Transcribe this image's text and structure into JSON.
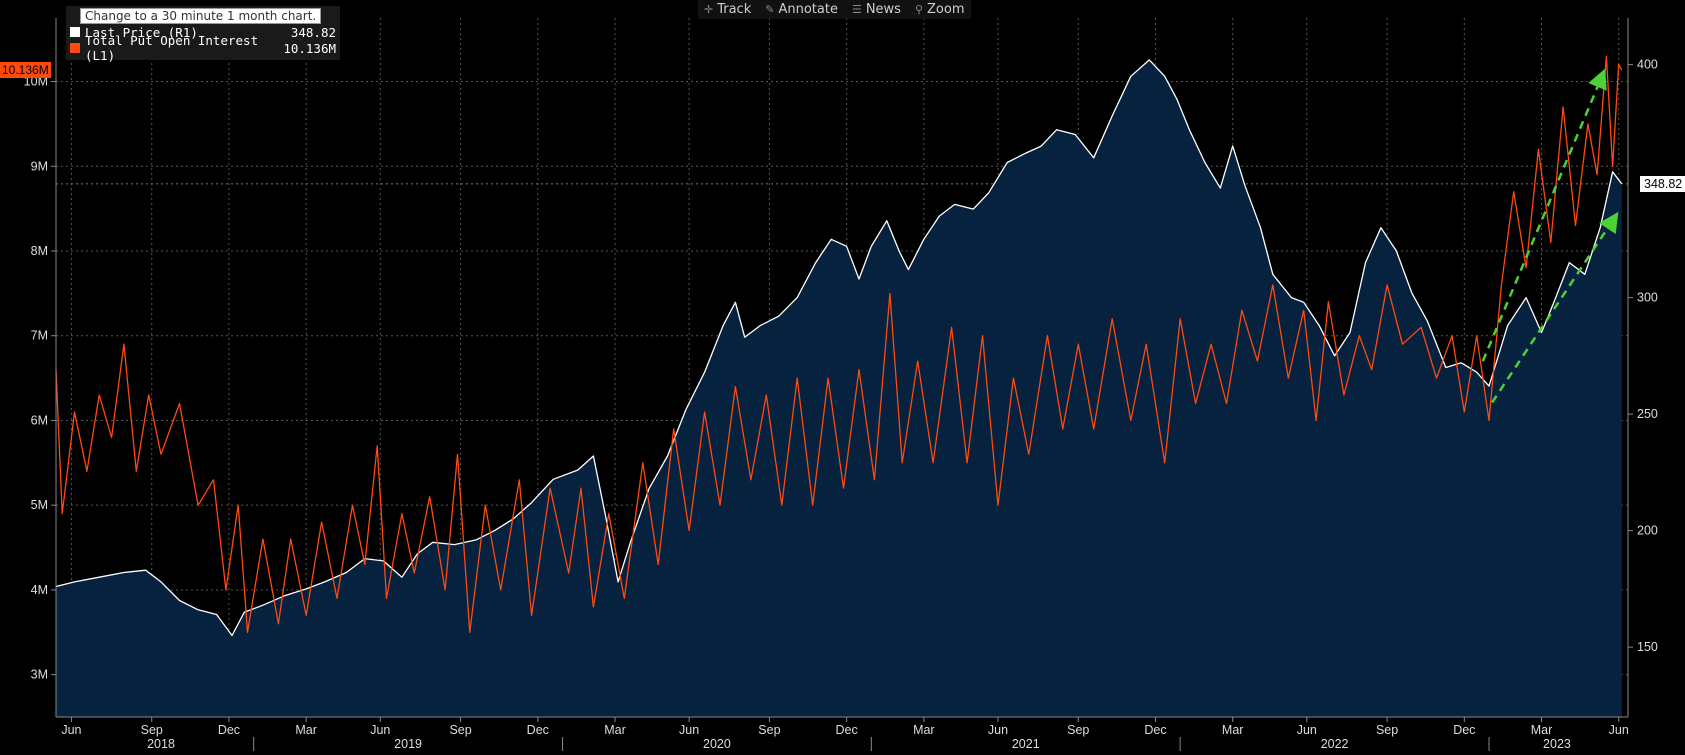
{
  "toolbar": {
    "track": "Track",
    "annotate": "Annotate",
    "news": "News",
    "zoom": "Zoom"
  },
  "legend": {
    "tooltip": "Change to a 30 minute 1 month chart.",
    "series": [
      {
        "label": "Last Price  (R1)",
        "value": "348.82",
        "color": "#ffffff"
      },
      {
        "label": "Total Put Open Interest  (L1)",
        "value": "10.136M",
        "color": "#ff4a0f"
      }
    ]
  },
  "flags": {
    "left": "10.136M",
    "right": "348.82"
  },
  "chart_data": {
    "type": "line",
    "left_axis": {
      "ticks": [
        "3M",
        "4M",
        "5M",
        "6M",
        "7M",
        "8M",
        "9M",
        "10M"
      ],
      "values": [
        3,
        4,
        5,
        6,
        7,
        8,
        9,
        10
      ],
      "range": [
        2.5,
        10.75
      ],
      "unit": "M"
    },
    "right_axis": {
      "ticks": [
        "150",
        "200",
        "250",
        "300",
        "400"
      ],
      "values": [
        150,
        200,
        250,
        300,
        400
      ],
      "range": [
        120,
        420
      ]
    },
    "x_axis": {
      "ticks": [
        {
          "label": "Jun",
          "t": 2018.41
        },
        {
          "label": "Sep",
          "t": 2018.67
        },
        {
          "label": "Dec",
          "t": 2018.92
        },
        {
          "label": "Mar",
          "t": 2019.17
        },
        {
          "label": "Jun",
          "t": 2019.41
        },
        {
          "label": "Sep",
          "t": 2019.67
        },
        {
          "label": "Dec",
          "t": 2019.92
        },
        {
          "label": "Mar",
          "t": 2020.17
        },
        {
          "label": "Jun",
          "t": 2020.41
        },
        {
          "label": "Sep",
          "t": 2020.67
        },
        {
          "label": "Dec",
          "t": 2020.92
        },
        {
          "label": "Mar",
          "t": 2021.17
        },
        {
          "label": "Jun",
          "t": 2021.41
        },
        {
          "label": "Sep",
          "t": 2021.67
        },
        {
          "label": "Dec",
          "t": 2021.92
        },
        {
          "label": "Mar",
          "t": 2022.17
        },
        {
          "label": "Jun",
          "t": 2022.41
        },
        {
          "label": "Sep",
          "t": 2022.67
        },
        {
          "label": "Dec",
          "t": 2022.92
        },
        {
          "label": "Mar",
          "t": 2023.17
        },
        {
          "label": "Jun",
          "t": 2023.42
        }
      ],
      "years": [
        {
          "label": "2018",
          "t": 2018.7
        },
        {
          "label": "2019",
          "t": 2019.5
        },
        {
          "label": "2020",
          "t": 2020.5
        },
        {
          "label": "2021",
          "t": 2021.5
        },
        {
          "label": "2022",
          "t": 2022.5
        },
        {
          "label": "2023",
          "t": 2023.22
        }
      ],
      "year_separators": [
        2019.0,
        2020.0,
        2021.0,
        2022.0,
        2023.0
      ],
      "range": [
        2018.36,
        2023.45
      ]
    },
    "grid": true,
    "series": [
      {
        "name": "Last Price",
        "axis": "right",
        "color": "#ffffff",
        "area_fill": "#06223f",
        "points": [
          [
            2018.36,
            176
          ],
          [
            2018.42,
            178
          ],
          [
            2018.5,
            180
          ],
          [
            2018.58,
            182
          ],
          [
            2018.65,
            183
          ],
          [
            2018.7,
            178
          ],
          [
            2018.76,
            170
          ],
          [
            2018.82,
            166
          ],
          [
            2018.88,
            164
          ],
          [
            2018.93,
            155
          ],
          [
            2018.97,
            165
          ],
          [
            2019.03,
            168
          ],
          [
            2019.1,
            172
          ],
          [
            2019.17,
            175
          ],
          [
            2019.23,
            178
          ],
          [
            2019.3,
            182
          ],
          [
            2019.36,
            188
          ],
          [
            2019.42,
            187
          ],
          [
            2019.48,
            180
          ],
          [
            2019.53,
            190
          ],
          [
            2019.58,
            195
          ],
          [
            2019.65,
            194
          ],
          [
            2019.72,
            196
          ],
          [
            2019.78,
            200
          ],
          [
            2019.84,
            205
          ],
          [
            2019.9,
            212
          ],
          [
            2019.97,
            222
          ],
          [
            2020.05,
            226
          ],
          [
            2020.1,
            232
          ],
          [
            2020.14,
            206
          ],
          [
            2020.18,
            178
          ],
          [
            2020.22,
            195
          ],
          [
            2020.28,
            218
          ],
          [
            2020.34,
            232
          ],
          [
            2020.4,
            252
          ],
          [
            2020.46,
            268
          ],
          [
            2020.52,
            288
          ],
          [
            2020.56,
            298
          ],
          [
            2020.59,
            283
          ],
          [
            2020.64,
            288
          ],
          [
            2020.7,
            292
          ],
          [
            2020.76,
            300
          ],
          [
            2020.82,
            315
          ],
          [
            2020.87,
            325
          ],
          [
            2020.92,
            322
          ],
          [
            2020.96,
            308
          ],
          [
            2021.0,
            322
          ],
          [
            2021.05,
            333
          ],
          [
            2021.09,
            320
          ],
          [
            2021.12,
            312
          ],
          [
            2021.17,
            325
          ],
          [
            2021.22,
            335
          ],
          [
            2021.27,
            340
          ],
          [
            2021.33,
            338
          ],
          [
            2021.38,
            345
          ],
          [
            2021.44,
            358
          ],
          [
            2021.5,
            362
          ],
          [
            2021.55,
            365
          ],
          [
            2021.6,
            372
          ],
          [
            2021.66,
            370
          ],
          [
            2021.72,
            360
          ],
          [
            2021.78,
            378
          ],
          [
            2021.84,
            395
          ],
          [
            2021.9,
            402
          ],
          [
            2021.95,
            395
          ],
          [
            2021.99,
            385
          ],
          [
            2022.03,
            372
          ],
          [
            2022.08,
            358
          ],
          [
            2022.13,
            347
          ],
          [
            2022.17,
            365
          ],
          [
            2022.21,
            348
          ],
          [
            2022.26,
            330
          ],
          [
            2022.3,
            310
          ],
          [
            2022.36,
            300
          ],
          [
            2022.4,
            298
          ],
          [
            2022.45,
            288
          ],
          [
            2022.5,
            275
          ],
          [
            2022.55,
            285
          ],
          [
            2022.6,
            315
          ],
          [
            2022.65,
            330
          ],
          [
            2022.7,
            320
          ],
          [
            2022.75,
            302
          ],
          [
            2022.8,
            290
          ],
          [
            2022.86,
            270
          ],
          [
            2022.91,
            272
          ],
          [
            2022.96,
            268
          ],
          [
            2023.0,
            262
          ],
          [
            2023.06,
            288
          ],
          [
            2023.12,
            300
          ],
          [
            2023.17,
            285
          ],
          [
            2023.21,
            298
          ],
          [
            2023.26,
            315
          ],
          [
            2023.31,
            310
          ],
          [
            2023.36,
            330
          ],
          [
            2023.4,
            354
          ],
          [
            2023.43,
            348.82
          ]
        ]
      },
      {
        "name": "Total Put Open Interest",
        "axis": "left",
        "color": "#ff4a0f",
        "points": [
          [
            2018.36,
            6.6
          ],
          [
            2018.38,
            4.9
          ],
          [
            2018.42,
            6.1
          ],
          [
            2018.46,
            5.4
          ],
          [
            2018.5,
            6.3
          ],
          [
            2018.54,
            5.8
          ],
          [
            2018.58,
            6.9
          ],
          [
            2018.62,
            5.4
          ],
          [
            2018.66,
            6.3
          ],
          [
            2018.7,
            5.6
          ],
          [
            2018.76,
            6.2
          ],
          [
            2018.82,
            5.0
          ],
          [
            2018.87,
            5.3
          ],
          [
            2018.91,
            4.0
          ],
          [
            2018.95,
            5.0
          ],
          [
            2018.98,
            3.5
          ],
          [
            2019.03,
            4.6
          ],
          [
            2019.08,
            3.6
          ],
          [
            2019.12,
            4.6
          ],
          [
            2019.17,
            3.7
          ],
          [
            2019.22,
            4.8
          ],
          [
            2019.27,
            3.9
          ],
          [
            2019.32,
            5.0
          ],
          [
            2019.36,
            4.3
          ],
          [
            2019.4,
            5.7
          ],
          [
            2019.43,
            3.9
          ],
          [
            2019.48,
            4.9
          ],
          [
            2019.52,
            4.2
          ],
          [
            2019.57,
            5.1
          ],
          [
            2019.62,
            4.0
          ],
          [
            2019.66,
            5.6
          ],
          [
            2019.7,
            3.5
          ],
          [
            2019.75,
            5.0
          ],
          [
            2019.8,
            4.0
          ],
          [
            2019.86,
            5.3
          ],
          [
            2019.9,
            3.7
          ],
          [
            2019.96,
            5.2
          ],
          [
            2020.02,
            4.2
          ],
          [
            2020.06,
            5.2
          ],
          [
            2020.1,
            3.8
          ],
          [
            2020.15,
            4.9
          ],
          [
            2020.2,
            3.9
          ],
          [
            2020.26,
            5.5
          ],
          [
            2020.31,
            4.3
          ],
          [
            2020.36,
            5.9
          ],
          [
            2020.41,
            4.7
          ],
          [
            2020.46,
            6.1
          ],
          [
            2020.51,
            5.0
          ],
          [
            2020.56,
            6.4
          ],
          [
            2020.61,
            5.3
          ],
          [
            2020.66,
            6.3
          ],
          [
            2020.71,
            5.0
          ],
          [
            2020.76,
            6.5
          ],
          [
            2020.81,
            5.0
          ],
          [
            2020.86,
            6.5
          ],
          [
            2020.91,
            5.2
          ],
          [
            2020.96,
            6.6
          ],
          [
            2021.01,
            5.3
          ],
          [
            2021.06,
            7.5
          ],
          [
            2021.1,
            5.5
          ],
          [
            2021.15,
            6.7
          ],
          [
            2021.2,
            5.5
          ],
          [
            2021.26,
            7.1
          ],
          [
            2021.31,
            5.5
          ],
          [
            2021.36,
            7.0
          ],
          [
            2021.41,
            5.0
          ],
          [
            2021.46,
            6.5
          ],
          [
            2021.51,
            5.6
          ],
          [
            2021.57,
            7.0
          ],
          [
            2021.62,
            5.9
          ],
          [
            2021.67,
            6.9
          ],
          [
            2021.72,
            5.9
          ],
          [
            2021.78,
            7.2
          ],
          [
            2021.84,
            6.0
          ],
          [
            2021.89,
            6.9
          ],
          [
            2021.95,
            5.5
          ],
          [
            2022.0,
            7.2
          ],
          [
            2022.05,
            6.2
          ],
          [
            2022.1,
            6.9
          ],
          [
            2022.15,
            6.2
          ],
          [
            2022.2,
            7.3
          ],
          [
            2022.25,
            6.7
          ],
          [
            2022.3,
            7.6
          ],
          [
            2022.35,
            6.5
          ],
          [
            2022.4,
            7.3
          ],
          [
            2022.44,
            6.0
          ],
          [
            2022.48,
            7.4
          ],
          [
            2022.53,
            6.3
          ],
          [
            2022.58,
            7.0
          ],
          [
            2022.62,
            6.6
          ],
          [
            2022.67,
            7.6
          ],
          [
            2022.72,
            6.9
          ],
          [
            2022.78,
            7.1
          ],
          [
            2022.83,
            6.5
          ],
          [
            2022.88,
            7.0
          ],
          [
            2022.92,
            6.1
          ],
          [
            2022.96,
            7.0
          ],
          [
            2023.0,
            6.0
          ],
          [
            2023.04,
            7.6
          ],
          [
            2023.08,
            8.7
          ],
          [
            2023.12,
            7.8
          ],
          [
            2023.16,
            9.2
          ],
          [
            2023.2,
            8.1
          ],
          [
            2023.24,
            9.7
          ],
          [
            2023.28,
            8.3
          ],
          [
            2023.32,
            9.5
          ],
          [
            2023.35,
            8.9
          ],
          [
            2023.38,
            10.3
          ],
          [
            2023.4,
            9.0
          ],
          [
            2023.42,
            10.2
          ],
          [
            2023.43,
            10.136
          ]
        ]
      }
    ],
    "annotations": [
      {
        "type": "arrow",
        "color": "#4cd137",
        "dashed": true,
        "axis": "left",
        "from": [
          2022.98,
          6.7
        ],
        "to": [
          2023.37,
          10.1
        ]
      },
      {
        "type": "arrow",
        "color": "#4cd137",
        "dashed": true,
        "axis": "right",
        "from": [
          2023.01,
          255
        ],
        "to": [
          2023.41,
          335
        ]
      }
    ]
  }
}
